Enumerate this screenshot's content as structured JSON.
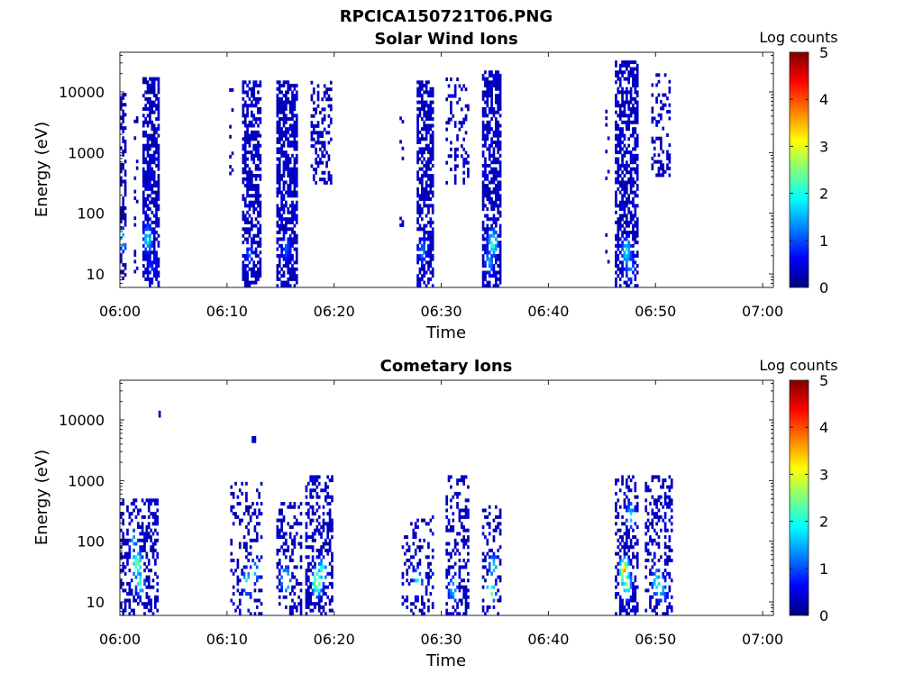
{
  "figure_title": "RPCICA150721T06.PNG",
  "colormap": [
    "#00007f",
    "#0000ff",
    "#007fff",
    "#00ffff",
    "#7fff7f",
    "#ffff00",
    "#ff7f00",
    "#ff0000",
    "#7f0000"
  ],
  "chart_data": [
    {
      "type": "heatmap",
      "title": "Solar Wind Ions",
      "xlabel": "Time",
      "ylabel": "Energy (eV)",
      "x_ticks": [
        "06:00",
        "06:10",
        "06:20",
        "06:30",
        "06:40",
        "06:50",
        "07:00"
      ],
      "x_range_min": [
        0,
        61
      ],
      "y_scale": "log",
      "y_ticks": [
        "10",
        "100",
        "1000",
        "10000"
      ],
      "y_range_eV": [
        6,
        45000
      ],
      "colorbar": {
        "label": "Log counts",
        "range": [
          0,
          5
        ],
        "ticks": [
          "0",
          "1",
          "2",
          "3",
          "4",
          "5"
        ]
      },
      "bursts": [
        {
          "t": [
            0.0,
            0.6
          ],
          "emin": 8,
          "emax": 9000,
          "density": 0.45,
          "seed": 11,
          "hot": [
            {
              "t": 0.2,
              "e": 35,
              "v": 1.6
            }
          ]
        },
        {
          "t": [
            1.3,
            1.6
          ],
          "emin": 8,
          "emax": 4000,
          "density": 0.18,
          "seed": 12,
          "hot": []
        },
        {
          "t": [
            2.1,
            3.7
          ],
          "emin": 6,
          "emax": 16000,
          "density": 0.65,
          "seed": 13,
          "hot": [
            {
              "t": 2.5,
              "e": 35,
              "v": 1.9
            },
            {
              "t": 2.9,
              "e": 12,
              "v": 0.8
            }
          ]
        },
        {
          "t": [
            10.2,
            10.5
          ],
          "emin": 200,
          "emax": 11000,
          "density": 0.12,
          "seed": 14,
          "hot": []
        },
        {
          "t": [
            11.4,
            13.2
          ],
          "emin": 6,
          "emax": 15000,
          "density": 0.62,
          "seed": 15,
          "hot": [
            {
              "t": 12.0,
              "e": 20,
              "v": 1.0
            }
          ]
        },
        {
          "t": [
            14.6,
            16.6
          ],
          "emin": 6,
          "emax": 15000,
          "density": 0.65,
          "seed": 16,
          "hot": [
            {
              "t": 15.4,
              "e": 25,
              "v": 1.1
            }
          ]
        },
        {
          "t": [
            17.8,
            19.7
          ],
          "emin": 300,
          "emax": 15000,
          "density": 0.35,
          "seed": 17,
          "hot": []
        },
        {
          "t": [
            26.1,
            26.4
          ],
          "emin": 60,
          "emax": 5000,
          "density": 0.12,
          "seed": 18,
          "hot": []
        },
        {
          "t": [
            27.7,
            29.3
          ],
          "emin": 6,
          "emax": 15000,
          "density": 0.62,
          "seed": 19,
          "hot": [
            {
              "t": 28.2,
              "e": 22,
              "v": 1.2
            }
          ]
        },
        {
          "t": [
            30.4,
            32.6
          ],
          "emin": 300,
          "emax": 16000,
          "density": 0.28,
          "seed": 20,
          "hot": []
        },
        {
          "t": [
            33.8,
            35.5
          ],
          "emin": 6,
          "emax": 20000,
          "density": 0.66,
          "seed": 21,
          "hot": [
            {
              "t": 34.7,
              "e": 30,
              "v": 2.3
            },
            {
              "t": 34.4,
              "e": 15,
              "v": 1.4
            }
          ]
        },
        {
          "t": [
            45.3,
            45.6
          ],
          "emin": 15,
          "emax": 8000,
          "density": 0.12,
          "seed": 22,
          "hot": []
        },
        {
          "t": [
            46.2,
            48.3
          ],
          "emin": 6,
          "emax": 30000,
          "density": 0.6,
          "seed": 23,
          "hot": [
            {
              "t": 47.2,
              "e": 22,
              "v": 2.0
            },
            {
              "t": 47.5,
              "e": 12,
              "v": 1.3
            }
          ]
        },
        {
          "t": [
            49.6,
            51.4
          ],
          "emin": 400,
          "emax": 18000,
          "density": 0.3,
          "seed": 24,
          "hot": []
        }
      ]
    },
    {
      "type": "heatmap",
      "title": "Cometary Ions",
      "xlabel": "Time",
      "ylabel": "Energy (eV)",
      "x_ticks": [
        "06:00",
        "06:10",
        "06:20",
        "06:30",
        "06:40",
        "06:50",
        "07:00"
      ],
      "x_range_min": [
        0,
        61
      ],
      "y_scale": "log",
      "y_ticks": [
        "10",
        "100",
        "1000",
        "10000"
      ],
      "y_range_eV": [
        6,
        45000
      ],
      "colorbar": {
        "label": "Log counts",
        "range": [
          0,
          5
        ],
        "ticks": [
          "0",
          "1",
          "2",
          "3",
          "4",
          "5"
        ]
      },
      "bursts": [
        {
          "t": [
            0.0,
            3.6
          ],
          "emin": 6,
          "emax": 500,
          "density": 0.42,
          "seed": 31,
          "hot": [
            {
              "t": 1.5,
              "e": 40,
              "v": 2.7
            },
            {
              "t": 1.8,
              "e": 20,
              "v": 2.1
            },
            {
              "t": 1.2,
              "e": 100,
              "v": 1.5
            }
          ]
        },
        {
          "t": [
            3.6,
            3.8
          ],
          "emin": 11000,
          "emax": 12500,
          "density": 1.0,
          "seed": 32,
          "hot": []
        },
        {
          "t": [
            10.3,
            13.3
          ],
          "emin": 6,
          "emax": 900,
          "density": 0.3,
          "seed": 33,
          "hot": [
            {
              "t": 11.8,
              "e": 20,
              "v": 2.0
            },
            {
              "t": 12.5,
              "e": 30,
              "v": 1.6
            }
          ]
        },
        {
          "t": [
            12.3,
            12.6
          ],
          "emin": 4200,
          "emax": 4800,
          "density": 1.0,
          "seed": 34,
          "hot": []
        },
        {
          "t": [
            14.6,
            17.0
          ],
          "emin": 6,
          "emax": 400,
          "density": 0.35,
          "seed": 35,
          "hot": [
            {
              "t": 15.4,
              "e": 22,
              "v": 2.3
            }
          ]
        },
        {
          "t": [
            17.3,
            19.9
          ],
          "emin": 6,
          "emax": 1200,
          "density": 0.45,
          "seed": 36,
          "hot": [
            {
              "t": 18.3,
              "e": 20,
              "v": 3.1
            },
            {
              "t": 18.8,
              "e": 30,
              "v": 2.2
            }
          ]
        },
        {
          "t": [
            26.3,
            29.3
          ],
          "emin": 6,
          "emax": 250,
          "density": 0.28,
          "seed": 37,
          "hot": [
            {
              "t": 27.7,
              "e": 20,
              "v": 2.0
            }
          ]
        },
        {
          "t": [
            30.4,
            32.6
          ],
          "emin": 6,
          "emax": 1100,
          "density": 0.35,
          "seed": 38,
          "hot": [
            {
              "t": 31.0,
              "e": 15,
              "v": 1.7
            }
          ]
        },
        {
          "t": [
            33.8,
            35.6
          ],
          "emin": 6,
          "emax": 350,
          "density": 0.35,
          "seed": 39,
          "hot": [
            {
              "t": 34.5,
              "e": 15,
              "v": 2.8
            },
            {
              "t": 34.8,
              "e": 35,
              "v": 1.8
            }
          ]
        },
        {
          "t": [
            46.2,
            48.4
          ],
          "emin": 6,
          "emax": 1200,
          "density": 0.45,
          "seed": 40,
          "hot": [
            {
              "t": 47.0,
              "e": 30,
              "v": 3.8
            },
            {
              "t": 47.2,
              "e": 18,
              "v": 2.6
            },
            {
              "t": 47.6,
              "e": 250,
              "v": 1.8
            }
          ]
        },
        {
          "t": [
            49.0,
            51.6
          ],
          "emin": 6,
          "emax": 1100,
          "density": 0.35,
          "seed": 41,
          "hot": [
            {
              "t": 50.0,
              "e": 20,
              "v": 2.1
            },
            {
              "t": 50.5,
              "e": 15,
              "v": 1.6
            }
          ]
        }
      ]
    }
  ]
}
